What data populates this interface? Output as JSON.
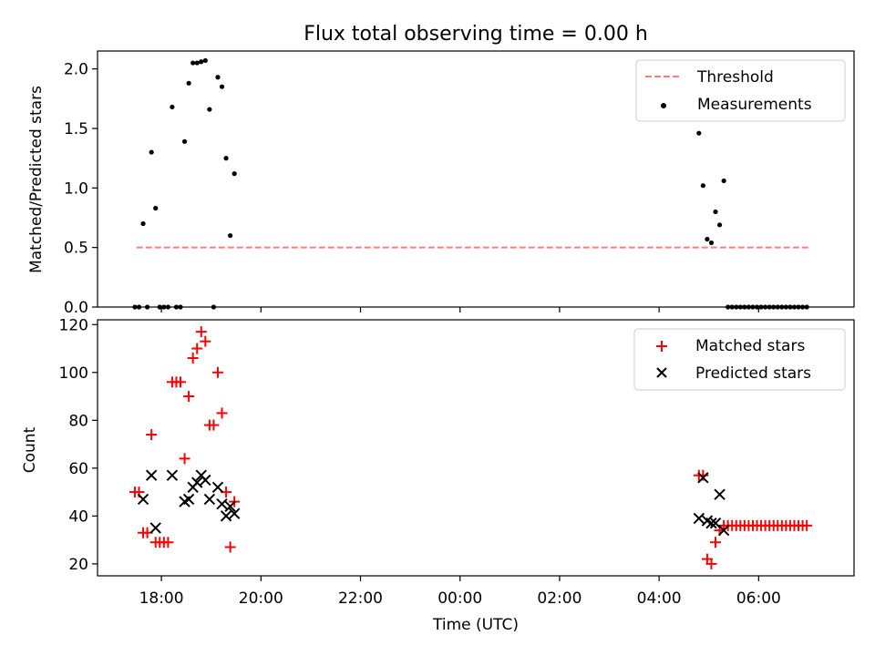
{
  "chart_data": [
    {
      "type": "scatter",
      "title": "Flux total observing time = 0.00 h",
      "ylabel": "Matched/Predicted stars",
      "xlabel": "",
      "xlim": [
        "16:43",
        "07:55"
      ],
      "ylim": [
        0,
        2.15
      ],
      "yticks": [
        "0.0",
        "0.5",
        "1.0",
        "1.5",
        "2.0"
      ],
      "legend_position": "top-right",
      "legend": [
        "Threshold",
        "Measurements"
      ],
      "threshold": {
        "name": "Threshold",
        "value": 0.5,
        "x_start": "17:30",
        "x_end": "07:00",
        "color": "#ff7f7f",
        "style": "dashed"
      },
      "series": [
        {
          "name": "Measurements",
          "color": "#000000",
          "marker": "dot",
          "points": [
            [
              "17:28",
              0.0
            ],
            [
              "17:33",
              0.0
            ],
            [
              "17:38",
              0.7
            ],
            [
              "17:43",
              0.0
            ],
            [
              "17:48",
              1.3
            ],
            [
              "17:53",
              0.83
            ],
            [
              "17:58",
              0.0
            ],
            [
              "18:03",
              0.0
            ],
            [
              "18:08",
              0.0
            ],
            [
              "18:13",
              1.68
            ],
            [
              "18:18",
              0.0
            ],
            [
              "18:23",
              0.0
            ],
            [
              "18:28",
              1.39
            ],
            [
              "18:33",
              1.88
            ],
            [
              "18:38",
              2.05
            ],
            [
              "18:43",
              2.05
            ],
            [
              "18:48",
              2.06
            ],
            [
              "18:53",
              2.07
            ],
            [
              "18:58",
              1.66
            ],
            [
              "19:03",
              0.0
            ],
            [
              "19:08",
              1.93
            ],
            [
              "19:13",
              1.85
            ],
            [
              "19:18",
              1.25
            ],
            [
              "19:23",
              0.6
            ],
            [
              "19:28",
              1.12
            ],
            [
              "04:48",
              1.46
            ],
            [
              "04:53",
              1.02
            ],
            [
              "04:58",
              0.57
            ],
            [
              "05:03",
              0.54
            ],
            [
              "05:08",
              0.8
            ],
            [
              "05:13",
              0.69
            ],
            [
              "05:18",
              1.06
            ],
            [
              "05:23",
              0.0
            ],
            [
              "05:28",
              0.0
            ],
            [
              "05:33",
              0.0
            ],
            [
              "05:38",
              0.0
            ],
            [
              "05:43",
              0.0
            ],
            [
              "05:48",
              0.0
            ],
            [
              "05:53",
              0.0
            ],
            [
              "05:58",
              0.0
            ],
            [
              "06:03",
              0.0
            ],
            [
              "06:08",
              0.0
            ],
            [
              "06:13",
              0.0
            ],
            [
              "06:18",
              0.0
            ],
            [
              "06:23",
              0.0
            ],
            [
              "06:28",
              0.0
            ],
            [
              "06:33",
              0.0
            ],
            [
              "06:38",
              0.0
            ],
            [
              "06:43",
              0.0
            ],
            [
              "06:48",
              0.0
            ],
            [
              "06:53",
              0.0
            ],
            [
              "06:58",
              0.0
            ]
          ]
        }
      ]
    },
    {
      "type": "scatter",
      "title": "",
      "xlabel": "Time (UTC)",
      "ylabel": "Count",
      "xlim": [
        "16:43",
        "07:55"
      ],
      "ylim": [
        15,
        122
      ],
      "xticks": [
        "18:00",
        "20:00",
        "22:00",
        "00:00",
        "02:00",
        "04:00",
        "06:00"
      ],
      "yticks": [
        "20",
        "40",
        "60",
        "80",
        "100",
        "120"
      ],
      "legend_position": "top-right",
      "legend": [
        "Matched stars",
        "Predicted stars"
      ],
      "series": [
        {
          "name": "Matched stars",
          "color": "#ff0000",
          "marker": "plus",
          "points": [
            [
              "17:28",
              50
            ],
            [
              "17:33",
              50
            ],
            [
              "17:38",
              33
            ],
            [
              "17:43",
              33
            ],
            [
              "17:48",
              74
            ],
            [
              "17:53",
              29
            ],
            [
              "17:58",
              29
            ],
            [
              "18:03",
              29
            ],
            [
              "18:08",
              29
            ],
            [
              "18:13",
              96
            ],
            [
              "18:18",
              96
            ],
            [
              "18:23",
              96
            ],
            [
              "18:28",
              64
            ],
            [
              "18:33",
              90
            ],
            [
              "18:38",
              106
            ],
            [
              "18:43",
              110
            ],
            [
              "18:48",
              117
            ],
            [
              "18:53",
              113
            ],
            [
              "18:58",
              78
            ],
            [
              "19:03",
              78
            ],
            [
              "19:08",
              100
            ],
            [
              "19:13",
              83
            ],
            [
              "19:18",
              50
            ],
            [
              "19:23",
              27
            ],
            [
              "19:28",
              46
            ],
            [
              "04:48",
              57
            ],
            [
              "04:53",
              57
            ],
            [
              "04:58",
              22
            ],
            [
              "05:03",
              20
            ],
            [
              "05:08",
              29
            ],
            [
              "05:13",
              34
            ],
            [
              "05:18",
              36
            ],
            [
              "05:23",
              36
            ],
            [
              "05:28",
              36
            ],
            [
              "05:33",
              36
            ],
            [
              "05:38",
              36
            ],
            [
              "05:43",
              36
            ],
            [
              "05:48",
              36
            ],
            [
              "05:53",
              36
            ],
            [
              "05:58",
              36
            ],
            [
              "06:03",
              36
            ],
            [
              "06:08",
              36
            ],
            [
              "06:13",
              36
            ],
            [
              "06:18",
              36
            ],
            [
              "06:23",
              36
            ],
            [
              "06:28",
              36
            ],
            [
              "06:33",
              36
            ],
            [
              "06:38",
              36
            ],
            [
              "06:43",
              36
            ],
            [
              "06:48",
              36
            ],
            [
              "06:53",
              36
            ],
            [
              "06:58",
              36
            ]
          ]
        },
        {
          "name": "Predicted stars",
          "color": "#000000",
          "marker": "x",
          "points": [
            [
              "17:38",
              47
            ],
            [
              "17:48",
              57
            ],
            [
              "17:53",
              35
            ],
            [
              "18:13",
              57
            ],
            [
              "18:28",
              46
            ],
            [
              "18:33",
              47
            ],
            [
              "18:38",
              52
            ],
            [
              "18:43",
              54
            ],
            [
              "18:48",
              57
            ],
            [
              "18:53",
              55
            ],
            [
              "18:58",
              47
            ],
            [
              "19:08",
              52
            ],
            [
              "19:13",
              45
            ],
            [
              "19:18",
              40
            ],
            [
              "19:23",
              44
            ],
            [
              "19:28",
              41
            ],
            [
              "04:48",
              39
            ],
            [
              "04:53",
              56
            ],
            [
              "04:58",
              38
            ],
            [
              "05:03",
              37
            ],
            [
              "05:08",
              37
            ],
            [
              "05:13",
              49
            ],
            [
              "05:18",
              34
            ]
          ]
        }
      ]
    }
  ]
}
